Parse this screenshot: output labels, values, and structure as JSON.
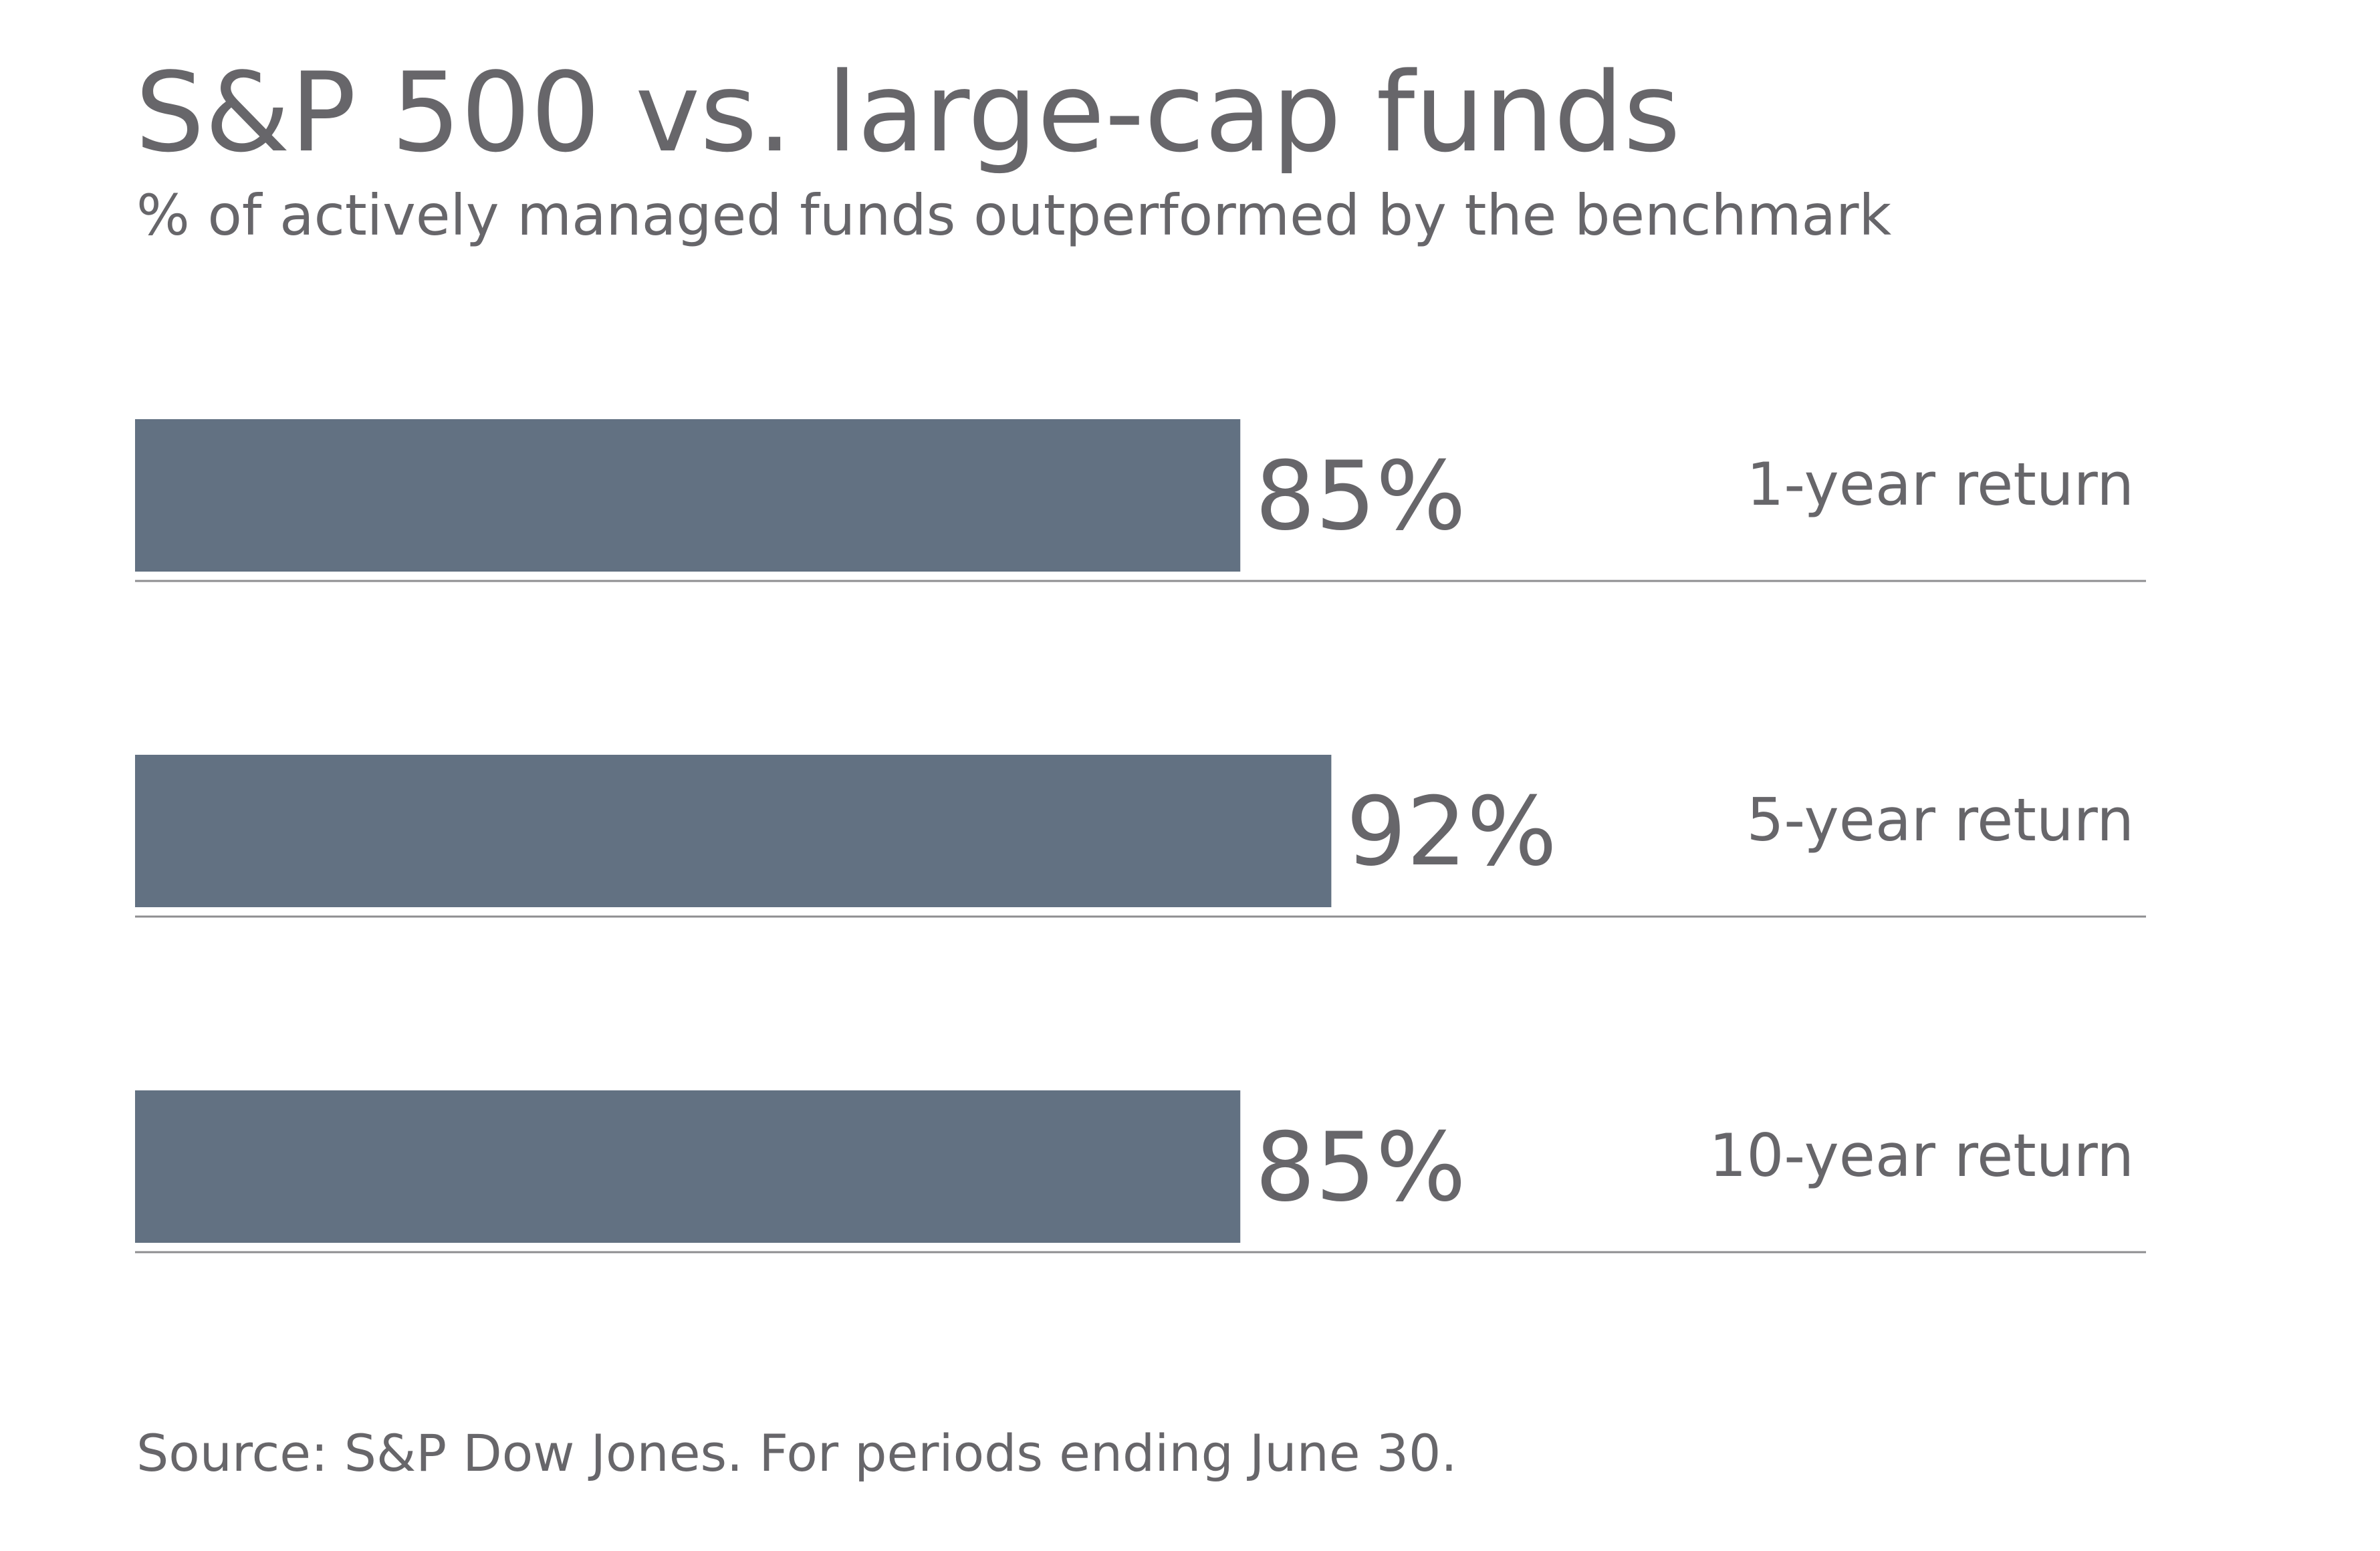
{
  "chart_data": {
    "type": "bar",
    "orientation": "horizontal",
    "title": "S&P 500 vs. large-cap funds",
    "subtitle": "% of actively managed funds outperformed by the benchmark",
    "categories": [
      "1-year return",
      "5-year return",
      "10-year return"
    ],
    "values": [
      85,
      92,
      85
    ],
    "value_labels": [
      "85%",
      "92%",
      "85%"
    ],
    "xlim": [
      0,
      100
    ],
    "grid": false,
    "legend": "none",
    "source": "Source: S&P Dow Jones. For periods ending June 30."
  },
  "colors": {
    "bar": "#627182",
    "text": "#67666a",
    "baseline": "#8e8e90",
    "background": "#ffffff"
  }
}
